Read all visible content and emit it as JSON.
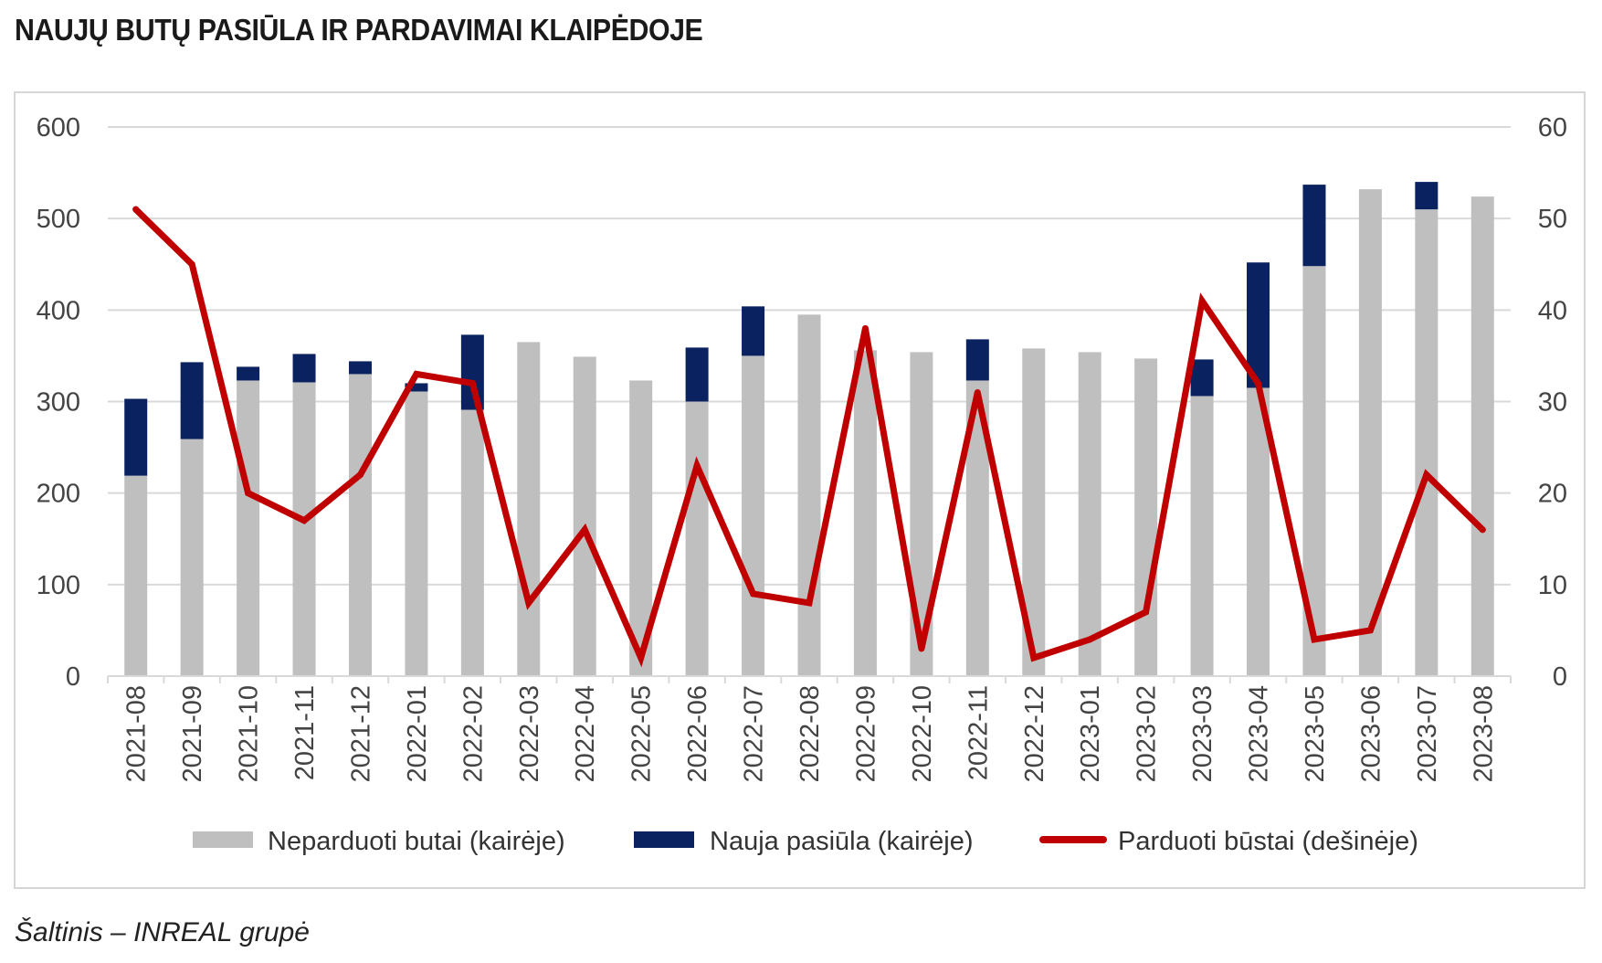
{
  "title": "NAUJŲ BUTŲ PASIŪLA IR PARDAVIMAI KLAIPĖDOJE",
  "source": "Šaltinis – INREAL grupė",
  "colors": {
    "unsold": "#bfbfbf",
    "new_supply": "#0b2260",
    "sold": "#c00000",
    "grid": "#d9d9d9"
  },
  "chart_data": {
    "type": "bar",
    "stacked": true,
    "categories": [
      "2021-08",
      "2021-09",
      "2021-10",
      "2021-11",
      "2021-12",
      "2022-01",
      "2022-02",
      "2022-03",
      "2022-04",
      "2022-05",
      "2022-06",
      "2022-07",
      "2022-08",
      "2022-09",
      "2022-10",
      "2022-11",
      "2022-12",
      "2023-01",
      "2023-02",
      "2023-03",
      "2023-04",
      "2023-05",
      "2023-06",
      "2023-07",
      "2023-08"
    ],
    "series": [
      {
        "name": "Neparduoti butai (kairėje)",
        "type": "bar",
        "axis": "left",
        "values": [
          219,
          259,
          323,
          321,
          330,
          311,
          291,
          365,
          349,
          323,
          300,
          350,
          395,
          356,
          354,
          323,
          358,
          354,
          347,
          306,
          315,
          448,
          532,
          510,
          524
        ]
      },
      {
        "name": "Nauja pasiūla (kairėje)",
        "type": "bar",
        "axis": "left",
        "values": [
          84,
          84,
          15,
          31,
          14,
          9,
          82,
          0,
          0,
          0,
          59,
          54,
          0,
          0,
          0,
          45,
          0,
          0,
          0,
          40,
          137,
          89,
          0,
          30,
          0
        ]
      },
      {
        "name": "Parduoti būstai (dešinėje)",
        "type": "line",
        "axis": "right",
        "values": [
          51,
          45,
          20,
          17,
          22,
          33,
          32,
          8,
          16,
          2,
          23,
          9,
          8,
          38,
          3,
          31,
          2,
          4,
          7,
          41,
          32,
          4,
          5,
          22,
          16
        ]
      }
    ],
    "y_left": {
      "min": 0,
      "max": 600,
      "ticks": [
        "0",
        "100",
        "200",
        "300",
        "400",
        "500",
        "600"
      ]
    },
    "y_right": {
      "min": 0,
      "max": 60,
      "ticks": [
        "0",
        "10",
        "20",
        "30",
        "40",
        "50",
        "60"
      ]
    },
    "grid": true,
    "legend_position": "bottom"
  }
}
